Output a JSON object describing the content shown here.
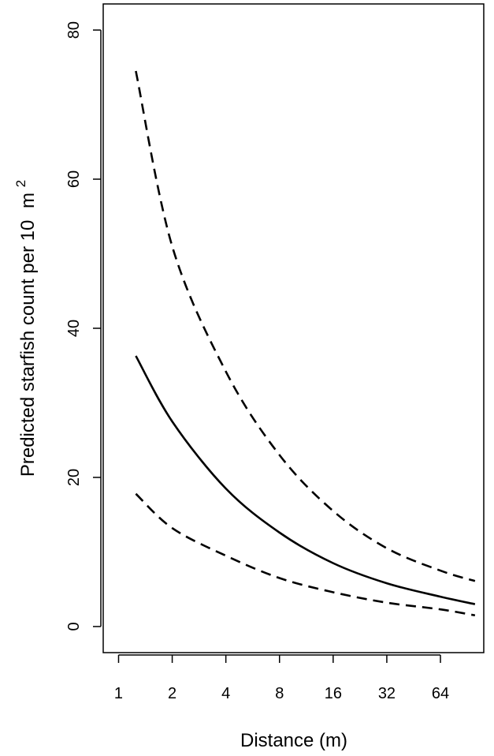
{
  "chart_data": {
    "type": "line",
    "title": "",
    "xlabel": "Distance (m)",
    "ylabel_main": "Predicted starfish count per 10",
    "ylabel_unit": "m",
    "ylabel_superscript": "2",
    "x_scale": "log2",
    "xlim": [
      0.82,
      112
    ],
    "ylim": [
      -3.5,
      83.5
    ],
    "x_ticks": [
      1,
      2,
      4,
      8,
      16,
      32,
      64
    ],
    "x_tick_labels": [
      "1",
      "2",
      "4",
      "8",
      "16",
      "32",
      "64"
    ],
    "y_ticks": [
      0,
      20,
      40,
      60,
      80
    ],
    "y_tick_labels": [
      "0",
      "20",
      "40",
      "60",
      "80"
    ],
    "grid": false,
    "legend": "none",
    "x": [
      1.25,
      2,
      4,
      8,
      16,
      32,
      64,
      100
    ],
    "series": [
      {
        "style": "solid",
        "values": [
          36.3,
          27.5,
          18.5,
          12.6,
          8.5,
          5.8,
          4.0,
          3.0
        ]
      },
      {
        "style": "dashed",
        "values": [
          74.5,
          51.0,
          34.2,
          23.0,
          15.5,
          10.5,
          7.5,
          6.1
        ]
      },
      {
        "style": "dashed",
        "values": [
          17.8,
          13.2,
          9.5,
          6.5,
          4.6,
          3.2,
          2.3,
          1.5
        ]
      }
    ]
  }
}
